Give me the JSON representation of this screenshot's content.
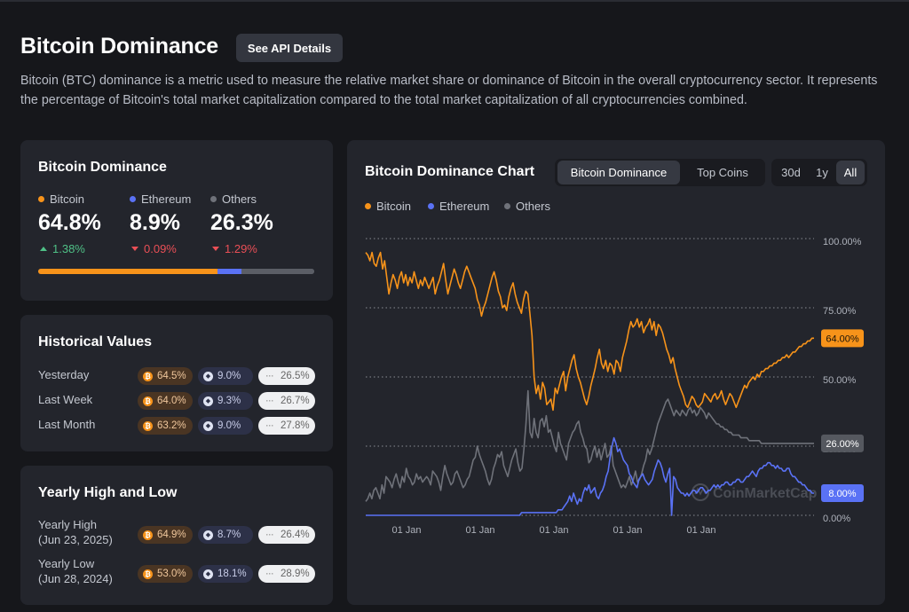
{
  "page": {
    "title": "Bitcoin Dominance",
    "api_button": "See API Details",
    "description": "Bitcoin (BTC) dominance is a metric used to measure the relative market share or dominance of Bitcoin in the overall cryptocurrency sector. It represents the percentage of Bitcoin's total market capitalization compared to the total market capitalization of all cryptocurrencies combined."
  },
  "colors": {
    "bitcoin": "#f7931a",
    "ethereum": "#5a72f5",
    "others": "#6f727a"
  },
  "dominance": {
    "title": "Bitcoin Dominance",
    "items": [
      {
        "name": "Bitcoin",
        "value": "64.8%",
        "change": "1.38%",
        "direction": "up"
      },
      {
        "name": "Ethereum",
        "value": "8.9%",
        "change": "0.09%",
        "direction": "down"
      },
      {
        "name": "Others",
        "value": "26.3%",
        "change": "1.29%",
        "direction": "down"
      }
    ],
    "bar_shares": [
      64.8,
      8.9,
      26.3
    ]
  },
  "historical": {
    "title": "Historical Values",
    "rows": [
      {
        "label": "Yesterday",
        "btc": "64.5%",
        "eth": "9.0%",
        "others": "26.5%"
      },
      {
        "label": "Last Week",
        "btc": "64.0%",
        "eth": "9.3%",
        "others": "26.7%"
      },
      {
        "label": "Last Month",
        "btc": "63.2%",
        "eth": "9.0%",
        "others": "27.8%"
      }
    ]
  },
  "yearly": {
    "title": "Yearly High and Low",
    "rows": [
      {
        "label": "Yearly High",
        "date": "(Jun 23, 2025)",
        "btc": "64.9%",
        "eth": "8.7%",
        "others": "26.4%"
      },
      {
        "label": "Yearly Low",
        "date": "(Jun 28, 2024)",
        "btc": "53.0%",
        "eth": "18.1%",
        "others": "28.9%"
      }
    ]
  },
  "chart_panel": {
    "title": "Bitcoin Dominance Chart",
    "tabs": [
      "Bitcoin Dominance",
      "Top Coins"
    ],
    "active_tab": "Bitcoin Dominance",
    "ranges": [
      "30d",
      "1y",
      "All"
    ],
    "active_range": "All",
    "legend": [
      "Bitcoin",
      "Ethereum",
      "Others"
    ],
    "watermark": "CoinMarketCap"
  },
  "chart_data": {
    "type": "line",
    "x_tick_labels": [
      "01 Jan",
      "01 Jan",
      "01 Jan",
      "01 Jan",
      "01 Jan"
    ],
    "y_ticks": [
      "100.00%",
      "75.00%",
      "50.00%",
      "25.00%",
      "0.00%"
    ],
    "ylim": [
      0,
      100
    ],
    "grid": true,
    "legend_position": "top-left",
    "current_labels": {
      "bitcoin": "64.00%",
      "others": "26.00%",
      "ethereum": "8.00%"
    },
    "series": [
      {
        "name": "Bitcoin",
        "color": "#f7931a",
        "values": [
          95,
          94,
          92,
          95,
          91,
          90,
          93,
          95,
          89,
          92,
          86,
          80,
          84,
          87,
          85,
          82,
          86,
          88,
          84,
          87,
          83,
          86,
          84,
          88,
          85,
          82,
          85,
          83,
          86,
          84,
          82,
          84,
          86,
          80,
          83,
          85,
          88,
          91,
          85,
          80,
          83,
          86,
          89,
          87,
          84,
          82,
          85,
          88,
          90,
          88,
          86,
          84,
          82,
          78,
          76,
          72,
          75,
          77,
          80,
          83,
          86,
          88,
          85,
          81,
          79,
          75,
          76,
          74,
          79,
          82,
          84,
          80,
          77,
          75,
          73,
          78,
          81,
          80,
          73,
          65,
          50,
          44,
          47,
          42,
          48,
          46,
          40,
          41,
          42,
          38,
          46,
          44,
          47,
          50,
          52,
          45,
          50,
          53,
          56,
          58,
          53,
          50,
          48,
          45,
          42,
          40,
          43,
          47,
          50,
          53,
          57,
          60,
          55,
          53,
          56,
          52,
          55,
          54,
          51,
          56,
          55,
          52,
          57,
          60,
          63,
          67,
          70,
          68,
          69,
          71,
          68,
          70,
          66,
          68,
          69,
          71,
          67,
          70,
          65,
          69,
          68,
          66,
          63,
          60,
          58,
          55,
          57,
          53,
          50,
          47,
          45,
          43,
          40,
          39,
          41,
          43,
          42,
          40,
          39,
          40,
          41,
          44,
          43,
          42,
          41,
          43,
          44,
          42,
          43,
          45,
          42,
          40,
          42,
          44,
          43,
          41,
          39,
          41,
          43,
          45,
          47,
          46,
          48,
          49,
          50,
          49,
          51,
          50,
          52,
          52,
          53,
          53,
          54,
          54,
          55,
          55,
          56,
          56,
          57,
          57,
          58,
          57,
          58,
          59,
          59,
          60,
          61,
          61,
          62,
          62,
          63,
          63,
          64,
          64
        ]
      },
      {
        "name": "Ethereum",
        "color": "#5a72f5",
        "values": [
          0,
          0,
          0,
          0,
          0,
          0,
          0,
          0,
          0,
          0,
          0,
          0,
          0,
          0,
          0,
          0,
          0,
          0,
          0,
          0,
          0,
          0,
          0,
          0,
          0,
          0,
          0,
          0,
          0,
          0,
          0,
          0,
          0,
          0,
          0,
          0,
          0,
          0,
          0,
          0,
          0,
          0,
          0,
          0,
          0,
          0,
          0,
          0,
          0,
          0,
          0,
          0,
          0,
          0,
          0,
          0,
          0,
          0,
          0,
          0,
          0,
          0,
          0,
          0,
          0,
          0,
          0,
          0,
          0,
          0,
          0,
          0,
          0,
          0,
          0,
          0,
          0,
          0,
          0,
          0,
          0,
          1,
          1,
          1,
          1,
          1,
          1,
          1,
          1,
          1,
          1,
          1,
          1,
          1,
          1,
          1,
          1,
          1,
          1,
          1,
          2,
          2,
          2,
          3,
          4,
          5,
          7,
          5,
          8,
          6,
          4,
          6,
          5,
          8,
          10,
          9,
          11,
          8,
          9,
          10,
          7,
          6,
          8,
          9,
          11,
          14,
          16,
          21,
          25,
          28,
          26,
          23,
          24,
          22,
          20,
          19,
          18,
          15,
          14,
          12,
          11,
          10,
          13,
          14,
          15,
          13,
          12,
          11,
          12,
          13,
          16,
          18,
          20,
          19,
          17,
          14,
          12,
          15,
          17,
          0,
          14,
          13,
          10,
          9,
          8,
          8,
          7,
          8,
          7,
          8,
          9,
          9,
          8,
          9,
          10,
          10,
          9,
          8,
          9,
          9,
          10,
          11,
          10,
          11,
          10,
          11,
          11,
          12,
          12,
          11,
          11,
          12,
          12,
          13,
          13,
          12,
          12,
          13,
          14,
          14,
          15,
          16,
          15,
          14,
          16,
          17,
          17,
          18,
          18,
          19,
          19,
          18,
          18,
          17,
          18,
          17,
          17,
          16,
          16,
          17,
          17,
          15,
          14,
          14,
          13,
          12,
          12,
          11,
          11,
          10,
          9,
          9,
          8,
          8
        ]
      },
      {
        "name": "Others",
        "color": "#6f727a",
        "values": [
          5,
          6,
          8,
          6,
          9,
          10,
          8,
          6,
          11,
          8,
          14,
          13,
          12,
          10,
          13,
          15,
          12,
          10,
          14,
          12,
          17,
          14,
          13,
          11,
          12,
          15,
          13,
          14,
          12,
          13,
          14,
          13,
          11,
          16,
          15,
          14,
          12,
          9,
          14,
          18,
          15,
          13,
          11,
          12,
          15,
          16,
          14,
          12,
          10,
          11,
          13,
          14,
          17,
          20,
          21,
          25,
          22,
          20,
          18,
          16,
          13,
          11,
          13,
          17,
          19,
          22,
          21,
          23,
          18,
          16,
          14,
          17,
          20,
          22,
          24,
          19,
          16,
          17,
          24,
          33,
          45,
          30,
          28,
          35,
          30,
          28,
          34,
          35,
          32,
          36,
          30,
          31,
          28,
          25,
          23,
          30,
          26,
          24,
          22,
          20,
          26,
          28,
          30,
          31,
          33,
          34,
          30,
          28,
          25,
          24,
          19,
          20,
          23,
          25,
          21,
          24,
          20,
          23,
          26,
          21,
          22,
          25,
          18,
          16,
          14,
          12,
          10,
          11,
          10,
          12,
          14,
          11,
          13,
          16,
          12,
          13,
          15,
          18,
          20,
          24,
          22,
          24,
          27,
          30,
          33,
          35,
          37,
          39,
          41,
          42,
          40,
          38,
          36,
          38,
          37,
          36,
          38,
          37,
          36,
          38,
          39,
          37,
          38,
          36,
          37,
          39,
          38,
          37,
          35,
          37,
          36,
          35,
          34,
          33,
          33,
          32,
          32,
          31,
          31,
          30,
          30,
          29,
          29,
          29,
          29,
          28,
          28,
          28,
          28,
          27,
          27,
          27,
          27,
          27,
          27,
          26,
          26,
          26,
          26,
          26,
          26,
          26,
          26,
          26,
          26,
          26,
          26,
          26,
          26,
          26,
          26,
          26,
          26,
          26,
          26,
          26,
          26,
          26,
          26,
          26,
          26,
          26
        ]
      }
    ]
  }
}
